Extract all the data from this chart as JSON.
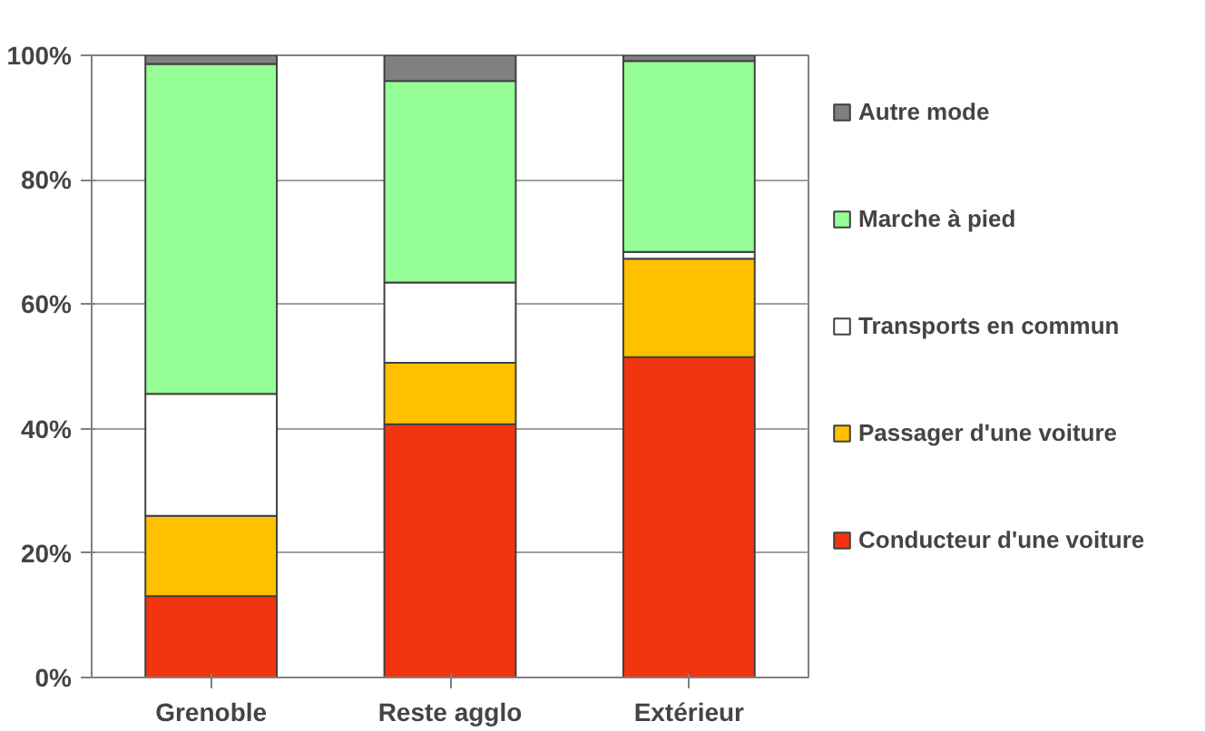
{
  "chart_data": {
    "type": "bar",
    "stacked": true,
    "categories": [
      "Grenoble",
      "Reste agglo",
      "Extérieur"
    ],
    "series": [
      {
        "name": "Conducteur d'une voiture",
        "color": "#f23510",
        "values": [
          13.1,
          40.7,
          51.5
        ]
      },
      {
        "name": "Passager d'une voiture",
        "color": "#ffc000",
        "values": [
          12.9,
          9.9,
          15.8
        ]
      },
      {
        "name": "Transports en commun",
        "color": "#ffffff",
        "values": [
          19.6,
          12.9,
          1.1
        ]
      },
      {
        "name": "Marche à pied",
        "color": "#96fe96",
        "values": [
          53.0,
          32.4,
          30.7
        ]
      },
      {
        "name": "Autre mode",
        "color": "#808080",
        "values": [
          1.4,
          4.1,
          0.9
        ]
      }
    ],
    "ylim": [
      0,
      100
    ],
    "yticks": [
      {
        "value": 0,
        "label": "0%"
      },
      {
        "value": 20,
        "label": "20%"
      },
      {
        "value": 40,
        "label": "40%"
      },
      {
        "value": 60,
        "label": "60%"
      },
      {
        "value": 80,
        "label": "80%"
      },
      {
        "value": 100,
        "label": "100%"
      }
    ],
    "grid": "y",
    "legend": "right"
  }
}
